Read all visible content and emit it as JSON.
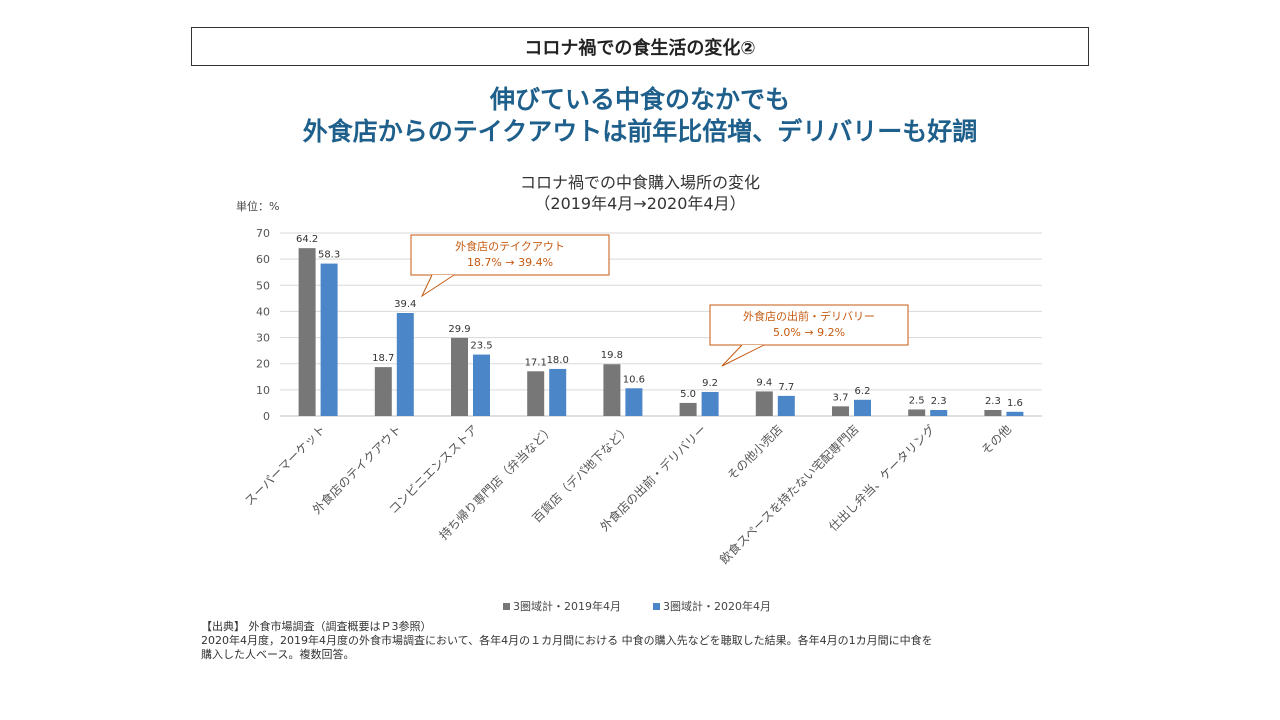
{
  "header": {
    "title": "コロナ禍での食生活の変化②"
  },
  "headline": {
    "line1": "伸びている中食のなかでも",
    "line2": "外食店からのテイクアウトは前年比倍増、デリバリーも好調"
  },
  "chart_data": {
    "type": "bar",
    "title_line1": "コロナ禍での中食購入場所の変化",
    "title_line2": "（2019年4月→2020年4月）",
    "unit_label": "単位：%",
    "categories": [
      "スーパーマーケット",
      "外食店のテイクアウト",
      "コンビニエンスストア",
      "持ち帰り専門店（弁当など）",
      "百貨店（デパ地下など）",
      "外食店の出前・デリバリー",
      "その他小売店",
      "飲食スペースを持たない宅配専門店",
      "仕出し弁当、ケータリング",
      "その他"
    ],
    "series": [
      {
        "name": "3圏域計・2019年4月",
        "values": [
          64.2,
          18.7,
          29.9,
          17.1,
          19.8,
          5.0,
          9.4,
          3.7,
          2.5,
          2.3
        ],
        "color": "#777777"
      },
      {
        "name": "3圏域計・2020年4月",
        "values": [
          58.3,
          39.4,
          23.5,
          18.0,
          10.6,
          9.2,
          7.7,
          6.2,
          2.3,
          1.6
        ],
        "color": "#4a86c8"
      }
    ],
    "ylim": [
      0,
      70
    ],
    "yticks": [
      0,
      10,
      20,
      30,
      40,
      50,
      60,
      70
    ],
    "grid": true,
    "legend_position": "bottom",
    "annotations": [
      {
        "line1": "外食店のテイクアウト",
        "line2": "18.7% → 39.4%",
        "category_index": 1,
        "color": "#c55a11"
      },
      {
        "line1": "外食店の出前・デリバリー",
        "line2": "5.0% → 9.2%",
        "category_index": 5,
        "color": "#c55a11"
      }
    ]
  },
  "source": {
    "line1": "【出典】 外食市場調査（調査概要はＰ3参照）",
    "line2": "2020年4月度，2019年4月度の外食市場調査において、各年4月の１カ月間における 中食の購入先などを聴取した結果。各年4月の1カ月間に中食を",
    "line3": "購入した人ベース。複数回答。"
  }
}
